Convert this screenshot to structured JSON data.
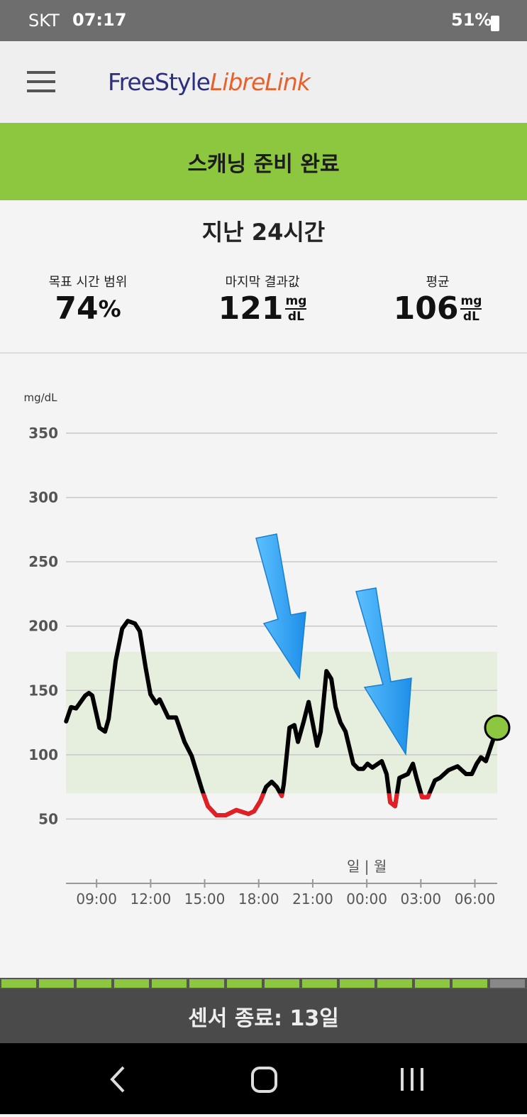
{
  "status_bar": {
    "carrier": "SKT",
    "time": "07:17",
    "battery": "51%"
  },
  "header": {
    "brand_1": "FreeStyle",
    "brand_2": "LibreLink"
  },
  "banner": "스캐닝 준비 완료",
  "summary": {
    "title": "지난 24시간",
    "stats": [
      {
        "label": "목표 시간 범위",
        "value": 74,
        "unit": "%"
      },
      {
        "label": "마지막 결과값",
        "value": 121,
        "unit_top": "mg",
        "unit_bottom": "dL"
      },
      {
        "label": "평균",
        "value": 106,
        "unit_top": "mg",
        "unit_bottom": "dL"
      }
    ]
  },
  "chart_data": {
    "type": "line",
    "y_label": "mg/dL",
    "day_label": "일 | 월",
    "x": [
      7.31,
      7.58,
      7.86,
      8.37,
      8.57,
      8.76,
      9.16,
      9.47,
      9.67,
      10.06,
      10.42,
      10.73,
      11.13,
      11.4,
      11.72,
      11.99,
      12.31,
      12.5,
      12.98,
      13.41,
      13.88,
      14.28,
      14.87,
      15.18,
      15.65,
      16.17,
      16.76,
      17.43,
      17.74,
      18.09,
      18.41,
      18.72,
      19.0,
      19.28,
      19.39,
      19.71,
      19.98,
      20.18,
      20.5,
      20.77,
      21.24,
      21.44,
      21.76,
      22.03,
      22.27,
      22.54,
      22.82,
      23.25,
      23.53,
      23.8,
      24.04,
      24.31,
      24.83,
      25.1,
      25.3,
      25.57,
      25.81,
      26.28,
      26.56,
      26.76,
      27.07,
      27.39,
      27.78,
      28.06,
      28.53,
      29.04,
      29.51,
      29.83,
      30.1,
      30.34,
      30.61,
      31.24
    ],
    "series": [
      {
        "name": "glucose",
        "color": "#000000",
        "low_color": "#e31e24",
        "values": [
          126,
          137,
          136,
          146,
          148,
          146,
          121,
          118,
          128,
          173,
          198,
          204,
          202,
          196,
          168,
          147,
          140,
          143,
          129,
          129,
          110,
          99,
          72,
          60,
          53,
          53,
          57,
          54,
          56,
          64,
          75,
          79,
          75,
          68,
          77,
          121,
          123,
          110,
          126,
          141,
          107,
          118,
          165,
          159,
          137,
          125,
          118,
          93,
          89,
          89,
          93,
          90,
          95,
          85,
          63,
          60,
          82,
          85,
          93,
          82,
          67,
          67,
          80,
          82,
          88,
          91,
          85,
          85,
          93,
          98,
          95,
          121
        ]
      }
    ],
    "current_color": "#8dc63f",
    "target_range": [
      70,
      180
    ],
    "target_color": "#e6eedd",
    "xlim": [
      7.3,
      31.24
    ],
    "xticks": [
      {
        "value": 9,
        "label": "09:00"
      },
      {
        "value": 12,
        "label": "12:00"
      },
      {
        "value": 15,
        "label": "15:00"
      },
      {
        "value": 18,
        "label": "18:00"
      },
      {
        "value": 21,
        "label": "21:00"
      },
      {
        "value": 24,
        "label": "00:00"
      },
      {
        "value": 27,
        "label": "03:00"
      },
      {
        "value": 30,
        "label": "06:00"
      }
    ],
    "ylim": [
      0,
      350
    ],
    "yticks": [
      50,
      100,
      150,
      200,
      250,
      300,
      350
    ],
    "grid": true
  },
  "footer": {
    "sensor": "센서 종료: 13일"
  }
}
